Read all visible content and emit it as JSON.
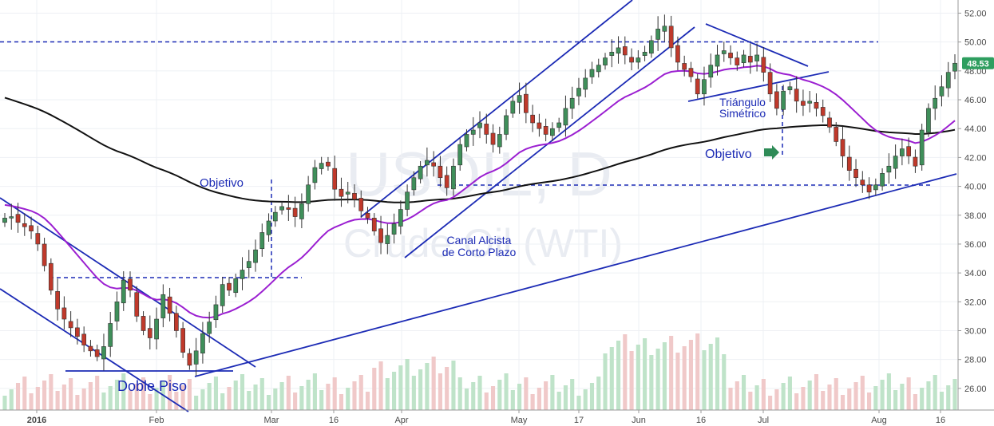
{
  "chart_data": {
    "type": "candlestick",
    "watermark": {
      "symbol": "USOIL, D",
      "name": "Crude Oil (WTI)"
    },
    "yaxis": {
      "ticks": [
        "26.00",
        "28.00",
        "30.00",
        "32.00",
        "34.00",
        "36.00",
        "38.00",
        "40.00",
        "42.00",
        "44.00",
        "46.00",
        "48.00",
        "50.00",
        "52.00"
      ],
      "ylim": [
        24.5,
        52.8
      ]
    },
    "xaxis": {
      "ticks": [
        {
          "label": "2016",
          "bold": true
        },
        {
          "label": "Feb"
        },
        {
          "label": "Mar"
        },
        {
          "label": "16"
        },
        {
          "label": "Apr"
        },
        {
          "label": "May"
        },
        {
          "label": "17"
        },
        {
          "label": "Jun"
        },
        {
          "label": "16"
        },
        {
          "label": "Jul"
        },
        {
          "label": "Aug"
        },
        {
          "label": "16"
        }
      ]
    },
    "last_price": {
      "label": "48.53",
      "value": 48.53,
      "color": "#2e9e5f"
    },
    "closes": [
      37.8,
      37.9,
      37.5,
      37.2,
      36.9,
      36.0,
      34.5,
      32.8,
      31.5,
      30.8,
      30.2,
      29.6,
      29.0,
      28.6,
      28.2,
      28.9,
      30.5,
      32.0,
      33.5,
      32.8,
      31.0,
      30.0,
      29.5,
      30.8,
      32.5,
      31.2,
      30.0,
      28.5,
      27.6,
      28.6,
      29.8,
      30.6,
      31.8,
      33.2,
      32.8,
      33.6,
      34.2,
      34.8,
      35.6,
      36.8,
      37.6,
      38.2,
      38.6,
      38.4,
      37.9,
      38.8,
      40.1,
      41.3,
      41.6,
      41.4,
      39.8,
      39.3,
      39.6,
      39.1,
      38.3,
      37.8,
      36.9,
      36.1,
      36.6,
      37.4,
      38.4,
      39.6,
      40.6,
      41.4,
      41.8,
      41.4,
      40.6,
      39.9,
      41.4,
      42.9,
      43.6,
      43.9,
      44.4,
      43.6,
      42.9,
      43.6,
      44.9,
      45.9,
      46.3,
      45.1,
      44.4,
      44.0,
      43.6,
      44.0,
      44.4,
      45.4,
      46.1,
      46.8,
      47.5,
      48.1,
      48.4,
      48.9,
      49.3,
      49.6,
      49.1,
      48.6,
      48.9,
      49.3,
      50.1,
      50.9,
      51.1,
      49.6,
      48.6,
      48.1,
      47.6,
      46.4,
      47.4,
      48.4,
      49.1,
      49.4,
      48.9,
      48.4,
      49.1,
      48.6,
      49.1,
      47.9,
      46.4,
      45.4,
      46.6,
      46.9,
      45.9,
      45.6,
      45.9,
      45.4,
      44.9,
      44.1,
      43.1,
      42.1,
      41.1,
      40.6,
      40.1,
      39.6,
      40.1,
      40.9,
      41.4,
      42.1,
      42.6,
      42.1,
      41.4,
      43.9,
      45.4,
      46.1,
      46.9,
      47.9,
      48.53
    ],
    "annotations": [
      {
        "text": "Objetivo"
      },
      {
        "text": "Doble Piso"
      },
      {
        "text": "Canal Alcista"
      },
      {
        "text": "de Corto Plazo"
      },
      {
        "text": "Triángulo"
      },
      {
        "text": "Simétrico"
      },
      {
        "text": "Objetivo"
      }
    ],
    "colors": {
      "up": "#3f8f5a",
      "down": "#c0392b",
      "ma_fast": "#9b1fd1",
      "ma_slow": "#111111",
      "lines": "#1c2bb5",
      "vol_up": "#bfe3c9",
      "vol_down": "#f0c9c9"
    }
  }
}
